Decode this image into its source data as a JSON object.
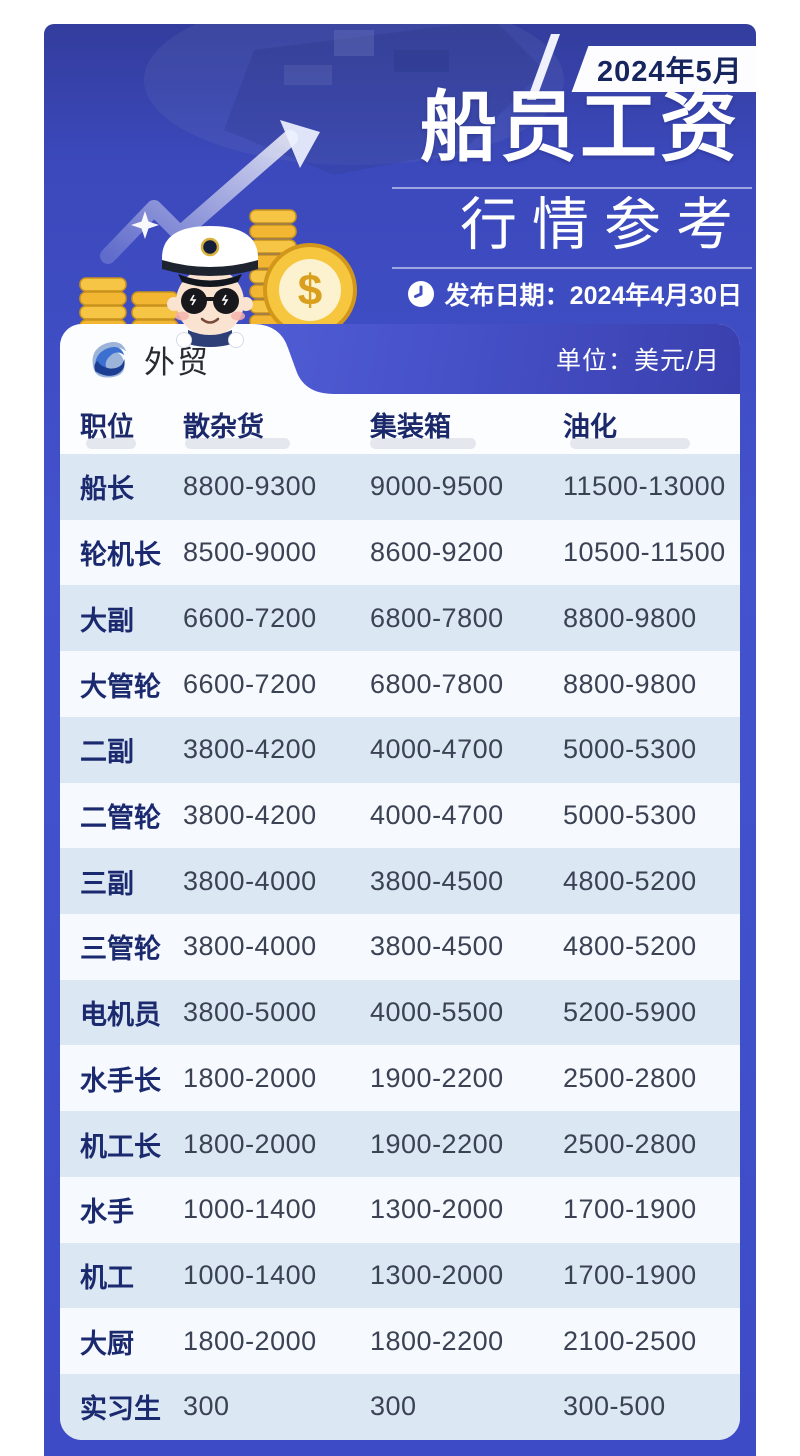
{
  "header": {
    "badge": "2024年5月",
    "title": "船员工资",
    "subtitle": "行情参考",
    "publish": "发布日期：2024年4月30日"
  },
  "card": {
    "tab": "外贸",
    "unit": "单位：美元/月"
  },
  "icons": {
    "clock": "clock-icon",
    "wave_logo": "wave-logo-icon",
    "captain": "captain-mascot-icon",
    "growth_arrow": "growth-arrow-icon",
    "sparkle": "sparkle-icon",
    "coin_stacks": "gold-coin-stack-icon",
    "dollar_coin": "dollar-coin-icon"
  },
  "colors": {
    "poster_blue": "#3d4cc6",
    "head_gradient_start": "#5a68dd",
    "head_gradient_end": "#3a40ae",
    "navy_text": "#1b2a6e",
    "value_text": "#3b4254",
    "row_stripe": "#dce7f4",
    "row_alt": "#f6f9fd",
    "gold": "#f2b633",
    "badge_text": "#17255e"
  },
  "chart_data": {
    "type": "table",
    "title": "船员工资行情参考",
    "period": "2024年5月",
    "published": "2024年4月30日",
    "segment": "外贸",
    "unit": "美元/月",
    "columns": [
      "职位",
      "散杂货",
      "集装箱",
      "油化"
    ],
    "rows": [
      [
        "船长",
        "8800-9300",
        "9000-9500",
        "11500-13000"
      ],
      [
        "轮机长",
        "8500-9000",
        "8600-9200",
        "10500-11500"
      ],
      [
        "大副",
        "6600-7200",
        "6800-7800",
        "8800-9800"
      ],
      [
        "大管轮",
        "6600-7200",
        "6800-7800",
        "8800-9800"
      ],
      [
        "二副",
        "3800-4200",
        "4000-4700",
        "5000-5300"
      ],
      [
        "二管轮",
        "3800-4200",
        "4000-4700",
        "5000-5300"
      ],
      [
        "三副",
        "3800-4000",
        "3800-4500",
        "4800-5200"
      ],
      [
        "三管轮",
        "3800-4000",
        "3800-4500",
        "4800-5200"
      ],
      [
        "电机员",
        "3800-5000",
        "4000-5500",
        "5200-5900"
      ],
      [
        "水手长",
        "1800-2000",
        "1900-2200",
        "2500-2800"
      ],
      [
        "机工长",
        "1800-2000",
        "1900-2200",
        "2500-2800"
      ],
      [
        "水手",
        "1000-1400",
        "1300-2000",
        "1700-1900"
      ],
      [
        "机工",
        "1000-1400",
        "1300-2000",
        "1700-1900"
      ],
      [
        "大厨",
        "1800-2000",
        "1800-2200",
        "2100-2500"
      ],
      [
        "实习生",
        "300",
        "300",
        "300-500"
      ]
    ]
  }
}
